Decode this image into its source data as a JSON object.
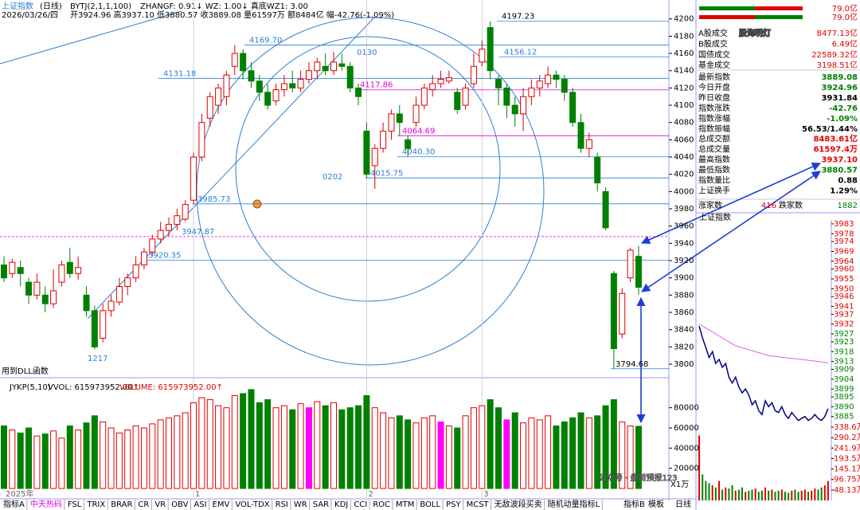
{
  "header": {
    "title": "上证指数",
    "period": "(日线)",
    "indicator": "BYTJ(2,1,1,100)",
    "params": "ZHANGF: 0.91↓ WZ: 1.00↓ 真底WZ1: 3.00",
    "date": "2026/03/26/四",
    "ohlc": "开3924.96 高3937.10 低3880.57 收3889.08 量61597万 额8484亿 幅-42.76(-1.09%)"
  },
  "chart_data": [
    {
      "type": "candlestick",
      "up_color": "#e00000",
      "down_color": "#008000",
      "categories": [
        "2025年",
        null,
        null,
        null,
        null,
        null,
        null,
        null,
        null,
        null,
        null,
        null,
        null,
        null,
        null,
        null,
        null,
        null,
        null,
        null,
        null,
        null,
        null,
        "1",
        null,
        null,
        null,
        null,
        null,
        null,
        null,
        null,
        null,
        null,
        null,
        null,
        null,
        null,
        null,
        null,
        null,
        null,
        null,
        null,
        "2",
        null,
        null,
        null,
        null,
        null,
        null,
        null,
        null,
        null,
        null,
        null,
        null,
        null,
        "3",
        null,
        null,
        null,
        null,
        null,
        null,
        null,
        null,
        null,
        null,
        null,
        null,
        null,
        null,
        null,
        null,
        null,
        null,
        null
      ],
      "open": [
        3915,
        3905,
        3912,
        3895,
        3880,
        3880,
        3870,
        3895,
        3918,
        3905,
        3880,
        3862,
        3830,
        3862,
        3872,
        3890,
        3900,
        3915,
        3930,
        3945,
        3955,
        3962,
        3968,
        3990,
        4040,
        4085,
        4100,
        4110,
        4145,
        4160,
        4140,
        4128,
        4115,
        4105,
        4118,
        4125,
        4120,
        4130,
        4140,
        4145,
        4140,
        4148,
        4145,
        4120,
        4070,
        4030,
        4050,
        4070,
        4090,
        4060,
        4080,
        4100,
        4118,
        4125,
        4128,
        4115,
        4100,
        4125,
        4150,
        4190,
        4130,
        4120,
        4100,
        4090,
        4110,
        4120,
        4125,
        4135,
        4130,
        4115,
        4080,
        4050,
        4040,
        4000,
        3905,
        3835,
        3900,
        3924.96
      ],
      "high": [
        3925,
        3922,
        3920,
        3900,
        3905,
        3890,
        3910,
        3920,
        3935,
        3925,
        3890,
        3868,
        3870,
        3880,
        3900,
        3905,
        3925,
        3935,
        3950,
        3965,
        3970,
        3980,
        3990,
        4045,
        4090,
        4115,
        4125,
        4140,
        4169.7,
        4165,
        4150,
        4135,
        4125,
        4125,
        4135,
        4140,
        4140,
        4150,
        4155,
        4160,
        4162,
        4160,
        4150,
        4125,
        4080,
        4055,
        4080,
        4095,
        4100,
        4064.69,
        4110,
        4125,
        4135,
        4140,
        4140,
        4120,
        4125,
        4160,
        4175,
        4197.23,
        4135,
        4125,
        4110,
        4120,
        4130,
        4135,
        4145,
        4140,
        4135,
        4120,
        4090,
        4068,
        4045,
        4005,
        3908,
        3888,
        3935,
        3937.1
      ],
      "low": [
        3895,
        3900,
        3890,
        3870,
        3875,
        3860,
        3865,
        3890,
        3900,
        3898,
        3855,
        3817,
        3825,
        3855,
        3868,
        3880,
        3895,
        3910,
        3925,
        3940,
        3948,
        3955,
        3965,
        3985,
        4035,
        4075,
        4090,
        4100,
        4135,
        4130,
        4120,
        4105,
        4095,
        4100,
        4110,
        4115,
        4115,
        4125,
        4130,
        4135,
        4135,
        4140,
        4115,
        4100,
        4015.75,
        4003,
        4045,
        4060,
        4065,
        4040.3,
        4075,
        4095,
        4110,
        4120,
        4125,
        4090,
        4095,
        4120,
        4145,
        4130,
        4100,
        4085,
        4075,
        4070,
        4100,
        4110,
        4120,
        4120,
        4105,
        4075,
        4045,
        4040,
        4000,
        3955,
        3794.68,
        3830,
        3895,
        3880.57
      ],
      "close": [
        3900,
        3918,
        3905,
        3880,
        3895,
        3870,
        3885,
        3915,
        3905,
        3912,
        3862,
        3820,
        3862,
        3873,
        3890,
        3900,
        3915,
        3930,
        3945,
        3955,
        3962,
        3972,
        3985,
        4040,
        4080,
        4110,
        4120,
        4135,
        4160,
        4140,
        4128,
        4115,
        4100,
        4118,
        4125,
        4120,
        4130,
        4140,
        4150,
        4140,
        4150,
        4145,
        4120,
        4110,
        4020,
        4050,
        4070,
        4090,
        4080,
        4050,
        4100,
        4120,
        4125,
        4130,
        4132,
        4095,
        4120,
        4145,
        4165,
        4140,
        4120,
        4100,
        4090,
        4110,
        4120,
        4128,
        4135,
        4130,
        4115,
        4080,
        4050,
        4060,
        4010,
        3958,
        3818,
        3882,
        3932,
        3889.08
      ],
      "ylim": [
        3788,
        4209
      ],
      "yticks": [
        3800,
        3820,
        3840,
        3860,
        3880,
        3900,
        3920,
        3940,
        3960,
        3980,
        4000,
        4020,
        4040,
        4060,
        4080,
        4100,
        4120,
        4140,
        4160,
        4180,
        4200
      ],
      "levels": [
        {
          "value": 4197.23,
          "label": "4197.23",
          "color": "#000000"
        },
        {
          "value": 4169.7,
          "label": "4169.70",
          "color": "#2a7fd4"
        },
        {
          "value": 4156.12,
          "label": "4156.12",
          "color": "#2a7fd4"
        },
        {
          "value": 4131.18,
          "label": "4131.18",
          "color": "#2a7fd4"
        },
        {
          "value": 4117.86,
          "label": "4117.86",
          "color": "#e000e0"
        },
        {
          "value": 4064.69,
          "label": "4064.69",
          "color": "#e000e0"
        },
        {
          "value": 4040.3,
          "label": "4040.30",
          "color": "#2a7fd4"
        },
        {
          "value": 4015.75,
          "label": "4015.75",
          "color": "#2a7fd4"
        },
        {
          "value": 3985.73,
          "label": "3985.73",
          "color": "#2a7fd4"
        },
        {
          "value": 3947.87,
          "label": "3947.87",
          "color": "#2a7fd4"
        },
        {
          "value": 3920.35,
          "label": "3920.35",
          "color": "#2a7fd4"
        },
        {
          "value": 3794.68,
          "label": "3794.68",
          "color": "#000000"
        }
      ],
      "annotations": [
        "0130",
        "0202",
        "1217",
        "用到DLL函数"
      ]
    },
    {
      "type": "bar",
      "title": "JYKP(5,10)",
      "legend": [
        "VVOL: 615973952.00↑",
        "VOLUME: 615973952.00↑"
      ],
      "unit": "X1万",
      "values": [
        62000,
        58000,
        55000,
        60000,
        52000,
        54000,
        57000,
        50000,
        62000,
        58000,
        65000,
        72000,
        66000,
        60000,
        55000,
        58000,
        62000,
        60000,
        64000,
        68000,
        70000,
        72000,
        75000,
        85000,
        90000,
        88000,
        82000,
        80000,
        92000,
        94000,
        98000,
        85000,
        88000,
        80000,
        82000,
        78000,
        84000,
        80000,
        86000,
        82000,
        85000,
        78000,
        80000,
        82000,
        92000,
        80000,
        75000,
        70000,
        72000,
        68000,
        65000,
        70000,
        72000,
        66000,
        62000,
        60000,
        72000,
        80000,
        82000,
        88000,
        80000,
        68000,
        75000,
        65000,
        70000,
        68000,
        72000,
        62000,
        66000,
        70000,
        75000,
        70000,
        72000,
        82000,
        88000,
        66000,
        62000,
        61597
      ],
      "colors": [
        "#008000",
        "#e00000",
        "#008000",
        "#008000",
        "#e00000",
        "#008000",
        "#e00000",
        "#e00000",
        "#008000",
        "#e00000",
        "#008000",
        "#008000",
        "#e00000",
        "#e00000",
        "#e00000",
        "#e00000",
        "#e00000",
        "#e00000",
        "#e00000",
        "#e00000",
        "#e00000",
        "#e00000",
        "#e00000",
        "#e00000",
        "#e00000",
        "#e00000",
        "#e00000",
        "#e00000",
        "#e00000",
        "#008000",
        "#008000",
        "#008000",
        "#008000",
        "#e00000",
        "#e00000",
        "#008000",
        "#e00000",
        "#ff00ff",
        "#e00000",
        "#008000",
        "#e00000",
        "#008000",
        "#008000",
        "#008000",
        "#008000",
        "#e00000",
        "#e00000",
        "#e00000",
        "#008000",
        "#008000",
        "#e00000",
        "#e00000",
        "#e00000",
        "#ff00ff",
        "#e00000",
        "#008000",
        "#e00000",
        "#e00000",
        "#e00000",
        "#008000",
        "#008000",
        "#ff00ff",
        "#008000",
        "#e00000",
        "#e00000",
        "#e00000",
        "#e00000",
        "#008000",
        "#008000",
        "#008000",
        "#008000",
        "#e00000",
        "#008000",
        "#008000",
        "#008000",
        "#e00000",
        "#e00000",
        "#008000"
      ],
      "ylim": [
        0,
        105000
      ],
      "yticks": [
        20000,
        40000,
        60000,
        80000
      ]
    },
    {
      "type": "line",
      "title": "上证指数",
      "series": [
        {
          "name": "price",
          "color": "#000080",
          "values": [
            3931,
            3925,
            3920,
            3915,
            3918,
            3912,
            3914,
            3910,
            3912,
            3905,
            3902,
            3905,
            3900,
            3897,
            3899,
            3896,
            3891,
            3893,
            3888,
            3886,
            3893,
            3890,
            3892,
            3888,
            3887,
            3890,
            3886,
            3884,
            3887,
            3885,
            3883,
            3884,
            3885,
            3883,
            3884,
            3886,
            3884,
            3883,
            3885,
            3889
          ]
        },
        {
          "name": "average",
          "color": "#e060e0",
          "values": [
            3932,
            3931,
            3930,
            3929,
            3928,
            3927,
            3926,
            3925,
            3924,
            3923,
            3922,
            3921,
            3920.5,
            3920,
            3919.5,
            3919,
            3918.5,
            3918,
            3917.5,
            3917,
            3916.5,
            3916,
            3915.8,
            3915.6,
            3915.4,
            3915.2,
            3915,
            3914.8,
            3914.6,
            3914.4,
            3914.2,
            3914,
            3913.8,
            3913.6,
            3913.4,
            3913.2,
            3913,
            3912.8,
            3912.6,
            3912.4
          ]
        }
      ],
      "ylim": [
        3880,
        3985
      ],
      "yticks": [
        3983,
        3978,
        3974,
        3969,
        3964,
        3960,
        3955,
        3950,
        3946,
        3941,
        3937,
        3932,
        3927,
        3923,
        3918,
        3913,
        3909,
        3904,
        3899,
        3895,
        3890,
        3885
      ]
    },
    {
      "type": "bar",
      "values": [
        300,
        120,
        90,
        80,
        70,
        60,
        90,
        50,
        60,
        55,
        70,
        45,
        50,
        60,
        40,
        45,
        50,
        55,
        40,
        45,
        60,
        45,
        50,
        40,
        45,
        50,
        40,
        35,
        45,
        50,
        40,
        45,
        50,
        40,
        45,
        55,
        50,
        60,
        70,
        90
      ],
      "ylim": [
        0,
        338.6
      ],
      "yticks": [
        {
          "value": 338.6,
          "label": "338.6万"
        },
        {
          "value": 290.2,
          "label": "290.2万"
        },
        {
          "value": 241.9,
          "label": "241.9万"
        },
        {
          "value": 193.5,
          "label": "193.5万"
        },
        {
          "value": 145.1,
          "label": "145.1万"
        },
        {
          "value": 96.75,
          "label": "96.75万"
        },
        {
          "value": 48.13,
          "label": "48.13万"
        }
      ]
    }
  ],
  "quote": {
    "top_bars": [
      "79.0亿",
      "79.0亿"
    ],
    "turnover": [
      {
        "label": "A股成交",
        "value": "8477.13亿",
        "color": "#e00000"
      },
      {
        "label": "B股成交",
        "value": "6.49亿",
        "color": "#e00000"
      },
      {
        "label": "国债成交",
        "value": "22589.32亿",
        "color": "#e00000"
      },
      {
        "label": "基金成交",
        "value": "3198.51亿",
        "color": "#e00000"
      }
    ],
    "index": [
      {
        "label": "最新指数",
        "value": "3889.08",
        "color": "#008000"
      },
      {
        "label": "今日开盘",
        "value": "3924.96",
        "color": "#008000"
      },
      {
        "label": "昨日收盘",
        "value": "3931.84",
        "color": "#000000"
      },
      {
        "label": "指数涨跌",
        "value": "-42.76",
        "color": "#008000"
      },
      {
        "label": "指数涨幅",
        "value": "-1.09%",
        "color": "#008000"
      },
      {
        "label": "指数振幅",
        "value": "56.53/1.44%",
        "color": "#000000"
      },
      {
        "label": "总成交额",
        "value": "8483.61亿",
        "color": "#e00000"
      },
      {
        "label": "总成交量",
        "value": "61597.4万",
        "color": "#e00000"
      },
      {
        "label": "最高指数",
        "value": "3937.10",
        "color": "#e00000"
      },
      {
        "label": "最低指数",
        "value": "3880.57",
        "color": "#008000"
      },
      {
        "label": "指数量比",
        "value": "0.88",
        "color": "#000000"
      },
      {
        "label": "上证换手",
        "value": "1.29%",
        "color": "#000000"
      }
    ],
    "advance_label": "涨家数",
    "advance": "416",
    "decline_label": "跌家数",
    "decline": "1882"
  },
  "tabs": [
    "指标A",
    "中天热码",
    "FSL",
    "TRIX",
    "BRAR",
    "CR",
    "VR",
    "OBV",
    "ASI",
    "EMV",
    "VOL-TDX",
    "RSI",
    "WR",
    "SAR",
    "KDJ",
    "CCI",
    "ROC",
    "MTM",
    "BOLL",
    "PSY",
    "MCST",
    "无敌波段买卖",
    "随机动量指标L"
  ],
  "right_tabs": [
    "指标B",
    "模板"
  ],
  "period_tab": "日线",
  "watermark": "股海明灯",
  "footer_watermark": "公众号 · 盘前预报123"
}
